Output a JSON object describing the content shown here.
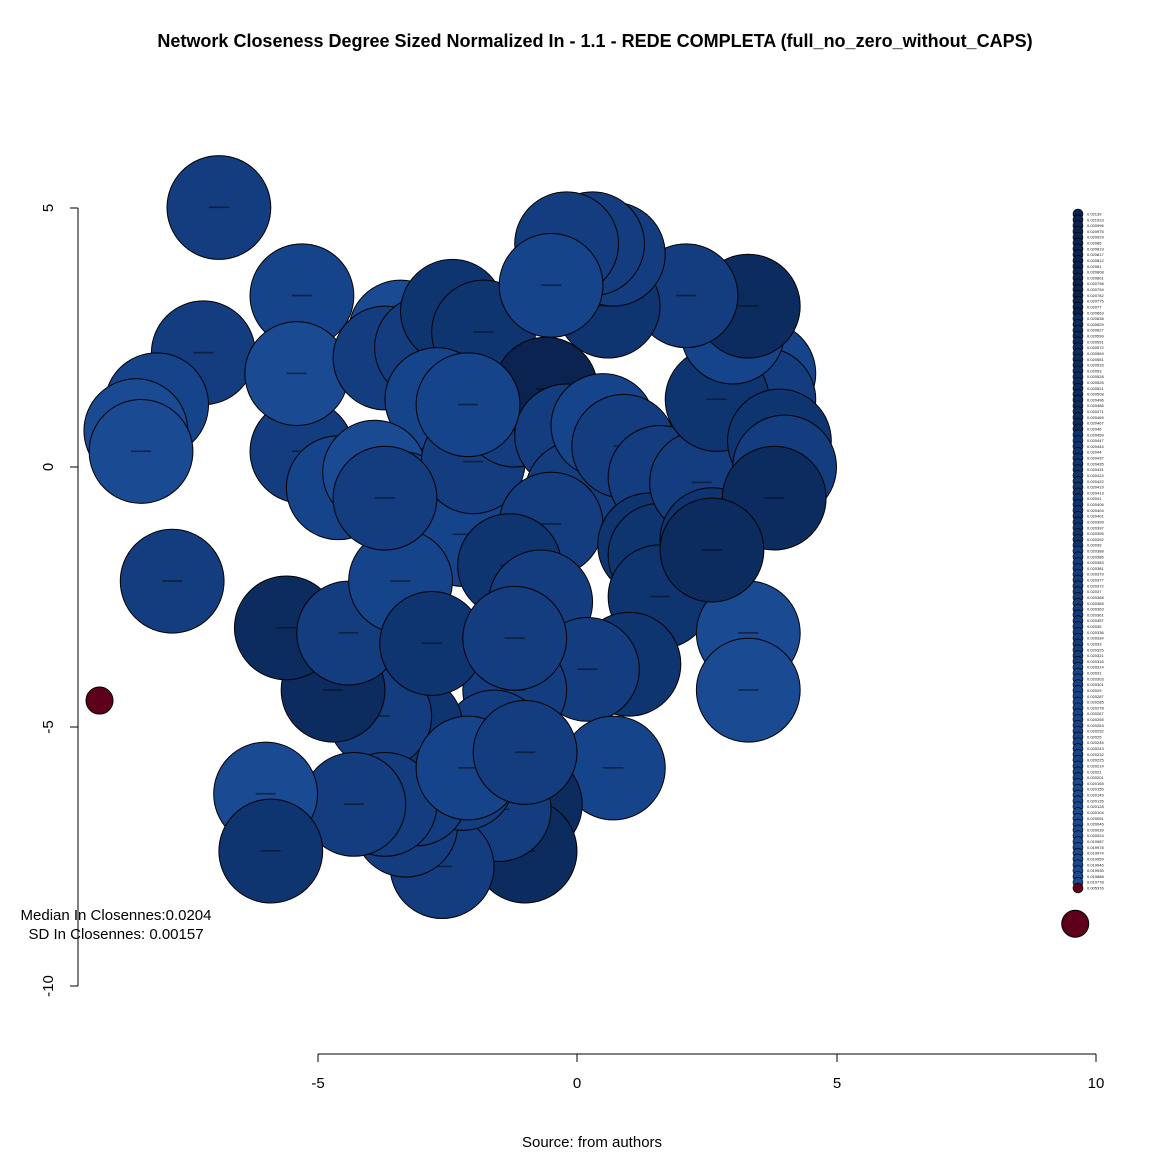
{
  "chart_data": {
    "type": "scatter",
    "title": "Network Closeness Degree Sized Normalized In - 1.1 - REDE COMPLETA (full_no_zero_without_CAPS)",
    "caption": "Source: from authors",
    "xlim": [
      -5,
      10
    ],
    "ylim": [
      -10,
      5
    ],
    "x_ticks": [
      -5,
      0,
      5,
      10
    ],
    "y_ticks": [
      5,
      0,
      -5,
      -10
    ],
    "x_tick_labels": [
      "-5",
      "0",
      "5",
      "10"
    ],
    "y_tick_labels": [
      "5",
      "0",
      "-5",
      "-10"
    ],
    "stats": {
      "median": "Median In Closennes:0.0204",
      "sd": "SD In Closennes: 0.00157"
    },
    "palette": {
      "node_blues": [
        "#1A4A92",
        "#16448A",
        "#133D7E",
        "#0F3571",
        "#0C2C60",
        "#0A2350"
      ],
      "isolate": "#5E001A"
    },
    "nodes": [
      {
        "x": -6.9,
        "y": 5.0,
        "r": 1.0,
        "shade": 2
      },
      {
        "x": -5.3,
        "y": 3.3,
        "r": 1.0,
        "shade": 1
      },
      {
        "x": -7.2,
        "y": 2.2,
        "r": 1.0,
        "shade": 2
      },
      {
        "x": -8.1,
        "y": 1.2,
        "r": 1.0,
        "shade": 1
      },
      {
        "x": -8.5,
        "y": 0.7,
        "r": 1.0,
        "shade": 0
      },
      {
        "x": -8.4,
        "y": 0.3,
        "r": 1.0,
        "shade": 0
      },
      {
        "x": -7.8,
        "y": -2.2,
        "r": 1.0,
        "shade": 2
      },
      {
        "x": -5.3,
        "y": 0.3,
        "r": 1.0,
        "shade": 2
      },
      {
        "x": -5.4,
        "y": 1.8,
        "r": 1.0,
        "shade": 0
      },
      {
        "x": -4.6,
        "y": -0.4,
        "r": 1.0,
        "shade": 1
      },
      {
        "x": -3.4,
        "y": 2.6,
        "r": 1.0,
        "shade": 0
      },
      {
        "x": -3.7,
        "y": 2.1,
        "r": 1.0,
        "shade": 2
      },
      {
        "x": -2.9,
        "y": 2.3,
        "r": 1.0,
        "shade": 2
      },
      {
        "x": -2.4,
        "y": 3.0,
        "r": 1.0,
        "shade": 3
      },
      {
        "x": -1.8,
        "y": 2.6,
        "r": 1.0,
        "shade": 3
      },
      {
        "x": -2.7,
        "y": 1.3,
        "r": 1.0,
        "shade": 1
      },
      {
        "x": -3.9,
        "y": -0.1,
        "r": 1.0,
        "shade": 0
      },
      {
        "x": -3.4,
        "y": -0.7,
        "r": 1.0,
        "shade": 1
      },
      {
        "x": -2.2,
        "y": -1.3,
        "r": 1.0,
        "shade": 1
      },
      {
        "x": -2.0,
        "y": 0.1,
        "r": 1.0,
        "shade": 2
      },
      {
        "x": -1.2,
        "y": 1.0,
        "r": 1.0,
        "shade": 2
      },
      {
        "x": -0.6,
        "y": 1.5,
        "r": 1.0,
        "shade": 5
      },
      {
        "x": -0.2,
        "y": 0.6,
        "r": 1.0,
        "shade": 2
      },
      {
        "x": 0.0,
        "y": -0.5,
        "r": 1.0,
        "shade": 2
      },
      {
        "x": -0.5,
        "y": -1.1,
        "r": 1.0,
        "shade": 2
      },
      {
        "x": -1.3,
        "y": -1.9,
        "r": 1.0,
        "shade": 3
      },
      {
        "x": -0.7,
        "y": -2.6,
        "r": 1.0,
        "shade": 2
      },
      {
        "x": 0.5,
        "y": 0.8,
        "r": 1.0,
        "shade": 1
      },
      {
        "x": 0.9,
        "y": 0.4,
        "r": 1.0,
        "shade": 2
      },
      {
        "x": 1.6,
        "y": -0.2,
        "r": 1.0,
        "shade": 2
      },
      {
        "x": 1.4,
        "y": -1.5,
        "r": 1.0,
        "shade": 3
      },
      {
        "x": 1.6,
        "y": -1.7,
        "r": 1.0,
        "shade": 3
      },
      {
        "x": 2.4,
        "y": -0.3,
        "r": 1.0,
        "shade": 2
      },
      {
        "x": 2.6,
        "y": -1.4,
        "r": 1.0,
        "shade": 3
      },
      {
        "x": 1.6,
        "y": -2.5,
        "r": 1.0,
        "shade": 3
      },
      {
        "x": 1.0,
        "y": -3.8,
        "r": 1.0,
        "shade": 3
      },
      {
        "x": 3.3,
        "y": -3.2,
        "r": 1.0,
        "shade": 0
      },
      {
        "x": 3.3,
        "y": -4.3,
        "r": 1.0,
        "shade": 0
      },
      {
        "x": 3.6,
        "y": 1.8,
        "r": 1.0,
        "shade": 1
      },
      {
        "x": 3.6,
        "y": 1.3,
        "r": 1.0,
        "shade": 2
      },
      {
        "x": 2.7,
        "y": 1.3,
        "r": 1.0,
        "shade": 3
      },
      {
        "x": 3.0,
        "y": 2.6,
        "r": 1.0,
        "shade": 1
      },
      {
        "x": 3.3,
        "y": 3.1,
        "r": 1.0,
        "shade": 4
      },
      {
        "x": 2.1,
        "y": 3.3,
        "r": 1.0,
        "shade": 2
      },
      {
        "x": 0.6,
        "y": 3.1,
        "r": 1.0,
        "shade": 3
      },
      {
        "x": 0.7,
        "y": 4.1,
        "r": 1.0,
        "shade": 2
      },
      {
        "x": 0.3,
        "y": 4.3,
        "r": 1.0,
        "shade": 2
      },
      {
        "x": -0.2,
        "y": 4.3,
        "r": 1.0,
        "shade": 2
      },
      {
        "x": -0.5,
        "y": 3.5,
        "r": 1.0,
        "shade": 1
      },
      {
        "x": 3.9,
        "y": 0.5,
        "r": 1.0,
        "shade": 3
      },
      {
        "x": 4.0,
        "y": 0.0,
        "r": 1.0,
        "shade": 2
      },
      {
        "x": 3.8,
        "y": -0.6,
        "r": 1.0,
        "shade": 4
      },
      {
        "x": 2.6,
        "y": -1.6,
        "r": 1.0,
        "shade": 4
      },
      {
        "x": 0.2,
        "y": -3.9,
        "r": 1.0,
        "shade": 2
      },
      {
        "x": 0.7,
        "y": -5.8,
        "r": 1.0,
        "shade": 1
      },
      {
        "x": -0.9,
        "y": -6.5,
        "r": 1.0,
        "shade": 4
      },
      {
        "x": -1.0,
        "y": -7.4,
        "r": 1.0,
        "shade": 4
      },
      {
        "x": -1.2,
        "y": -4.3,
        "r": 1.0,
        "shade": 2
      },
      {
        "x": -1.6,
        "y": -5.3,
        "r": 1.0,
        "shade": 2
      },
      {
        "x": -1.5,
        "y": -6.6,
        "r": 1.0,
        "shade": 2
      },
      {
        "x": -2.6,
        "y": -7.7,
        "r": 1.0,
        "shade": 2
      },
      {
        "x": -3.3,
        "y": -6.9,
        "r": 1.0,
        "shade": 2
      },
      {
        "x": -2.2,
        "y": -6.0,
        "r": 1.0,
        "shade": 2
      },
      {
        "x": -3.1,
        "y": -6.3,
        "r": 1.0,
        "shade": 2
      },
      {
        "x": -3.2,
        "y": -5.0,
        "r": 1.0,
        "shade": 3
      },
      {
        "x": -3.8,
        "y": -4.8,
        "r": 1.0,
        "shade": 2
      },
      {
        "x": -4.7,
        "y": -4.3,
        "r": 1.0,
        "shade": 4
      },
      {
        "x": -5.6,
        "y": -3.1,
        "r": 1.0,
        "shade": 4
      },
      {
        "x": -4.4,
        "y": -3.2,
        "r": 1.0,
        "shade": 2
      },
      {
        "x": -3.4,
        "y": -2.2,
        "r": 1.0,
        "shade": 1
      },
      {
        "x": -2.8,
        "y": -3.4,
        "r": 1.0,
        "shade": 3
      },
      {
        "x": -3.7,
        "y": -6.5,
        "r": 1.0,
        "shade": 2
      },
      {
        "x": -4.3,
        "y": -6.5,
        "r": 1.0,
        "shade": 2
      },
      {
        "x": -6.0,
        "y": -6.3,
        "r": 1.0,
        "shade": 0
      },
      {
        "x": -5.9,
        "y": -7.4,
        "r": 1.0,
        "shade": 3
      },
      {
        "x": -2.1,
        "y": -5.8,
        "r": 1.0,
        "shade": 1
      },
      {
        "x": -1.0,
        "y": -5.5,
        "r": 1.0,
        "shade": 2
      },
      {
        "x": -1.2,
        "y": -3.3,
        "r": 1.0,
        "shade": 2
      },
      {
        "x": -2.1,
        "y": 1.2,
        "r": 1.0,
        "shade": 1
      },
      {
        "x": -3.7,
        "y": -0.6,
        "r": 1.0,
        "shade": 2
      },
      {
        "x": -9.2,
        "y": -4.5,
        "r": 0.26,
        "shade": -1
      },
      {
        "x": 9.6,
        "y": -8.8,
        "r": 0.26,
        "shade": -1
      }
    ],
    "legend": {
      "labels": [
        "0.02139",
        "0.021923",
        "0.020996",
        "0.020975",
        "0.020929",
        "0.02085",
        "0.020819",
        "0.020817",
        "0.020812",
        "0.02081",
        "0.020808",
        "0.020801",
        "0.020798",
        "0.020794",
        "0.020782",
        "0.020775",
        "0.02077",
        "0.020663",
        "0.020638",
        "0.020629",
        "0.020627",
        "0.020599",
        "0.020591",
        "0.020572",
        "0.020569",
        "0.020551",
        "0.020533",
        "0.02053",
        "0.020528",
        "0.020526",
        "0.020521",
        "0.020508",
        "0.020496",
        "0.020486",
        "0.020471",
        "0.020469",
        "0.020467",
        "0.02046",
        "0.020459",
        "0.020447",
        "0.020444",
        "0.02044",
        "0.020437",
        "0.020435",
        "0.020431",
        "0.020424",
        "0.020422",
        "0.020419",
        "0.020413",
        "0.02041",
        "0.020406",
        "0.020404",
        "0.020401",
        "0.020399",
        "0.020397",
        "0.020395",
        "0.020392",
        "0.02039",
        "0.020388",
        "0.020386",
        "0.020383",
        "0.020381",
        "0.020379",
        "0.020377",
        "0.020372",
        "0.02037",
        "0.020368",
        "0.020365",
        "0.020363",
        "0.020361",
        "0.020357",
        "0.02035",
        "0.020336",
        "0.020334",
        "0.02033",
        "0.020325",
        "0.020321",
        "0.020316",
        "0.020314",
        "0.02031",
        "0.020303",
        "0.020301",
        "0.02029",
        "0.020287",
        "0.020285",
        "0.020278",
        "0.020267",
        "0.020265",
        "0.020263",
        "0.020252",
        "0.02025",
        "0.020245",
        "0.020243",
        "0.020232",
        "0.020225",
        "0.020214",
        "0.02021",
        "0.020201",
        "0.020165",
        "0.020155",
        "0.020149",
        "0.020135",
        "0.020128",
        "0.020104",
        "0.020091",
        "0.020046",
        "0.020039",
        "0.020024",
        "0.019987",
        "0.019978",
        "0.019974",
        "0.019959",
        "0.019946",
        "0.019935",
        "0.019888",
        "0.019778",
        "0.005376"
      ]
    }
  }
}
